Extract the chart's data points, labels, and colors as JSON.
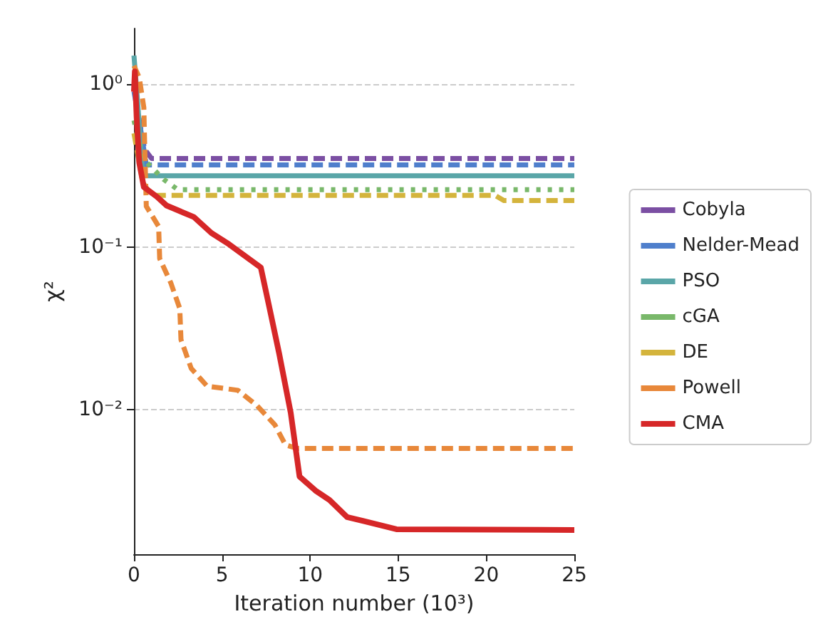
{
  "chart_data": {
    "type": "line",
    "xlabel": "Iteration number (10³)",
    "ylabel": "χ²",
    "log": "y",
    "xlim": [
      0,
      25
    ],
    "xticks": [
      0,
      5,
      10,
      15,
      20,
      25
    ],
    "ylim": [
      0.0013,
      2.2
    ],
    "yticks": [
      {
        "value": 1,
        "label": "10⁰"
      },
      {
        "value": 0.1,
        "label": "10⁻¹"
      },
      {
        "value": 0.01,
        "label": "10⁻²"
      }
    ],
    "grid": "y",
    "legend": "right",
    "marker": "none",
    "series": [
      {
        "name": "Cobyla",
        "color": "#7b4fa3",
        "line_style": "dashed",
        "x": [
          0,
          0.3,
          0.6,
          1,
          25
        ],
        "values": [
          1.0,
          0.6,
          0.4,
          0.35,
          0.35
        ]
      },
      {
        "name": "Nelder-Mead",
        "color": "#4f7fcc",
        "line_style": "dashed",
        "x": [
          0,
          0.3,
          0.7,
          25
        ],
        "values": [
          0.9,
          0.6,
          0.32,
          0.32
        ]
      },
      {
        "name": "PSO",
        "color": "#5aa6a8",
        "line_style": "solid",
        "x": [
          0,
          0.2,
          0.5,
          25
        ],
        "values": [
          1.5,
          0.8,
          0.274,
          0.274
        ]
      },
      {
        "name": "cGA",
        "color": "#79b86a",
        "line_style": "dotted",
        "x": [
          0,
          0.5,
          1.7,
          2.5,
          25
        ],
        "values": [
          0.6,
          0.35,
          0.26,
          0.225,
          0.225
        ]
      },
      {
        "name": "DE",
        "color": "#d4b43c",
        "line_style": "dashed",
        "x": [
          0,
          0.5,
          1,
          20.5,
          21,
          25
        ],
        "values": [
          0.5,
          0.25,
          0.208,
          0.208,
          0.193,
          0.193
        ]
      },
      {
        "name": "Powell",
        "color": "#e8883a",
        "line_style": "dashed",
        "x": [
          0,
          0.3,
          0.56,
          0.6,
          0.7,
          1.4,
          1.46,
          2.1,
          2.6,
          2.67,
          3.25,
          4.15,
          5.9,
          7.0,
          8.0,
          8.6,
          9.3,
          25
        ],
        "values": [
          1.3,
          1.1,
          0.72,
          0.46,
          0.178,
          0.134,
          0.085,
          0.06,
          0.042,
          0.027,
          0.018,
          0.014,
          0.0132,
          0.0106,
          0.0081,
          0.0061,
          0.0058,
          0.0058
        ]
      },
      {
        "name": "CMA",
        "color": "#d62728",
        "line_style": "solid",
        "x": [
          0,
          0.05,
          0.15,
          0.3,
          0.56,
          1.3,
          1.85,
          3.4,
          4.4,
          5.4,
          7.2,
          7.7,
          8.25,
          8.9,
          9.4,
          10.3,
          11.1,
          12.1,
          14.9,
          25
        ],
        "values": [
          0.9,
          1.2,
          0.63,
          0.33,
          0.234,
          0.204,
          0.18,
          0.153,
          0.122,
          0.104,
          0.075,
          0.042,
          0.022,
          0.0096,
          0.0039,
          0.0032,
          0.0028,
          0.0022,
          0.00185,
          0.00183
        ]
      }
    ]
  }
}
